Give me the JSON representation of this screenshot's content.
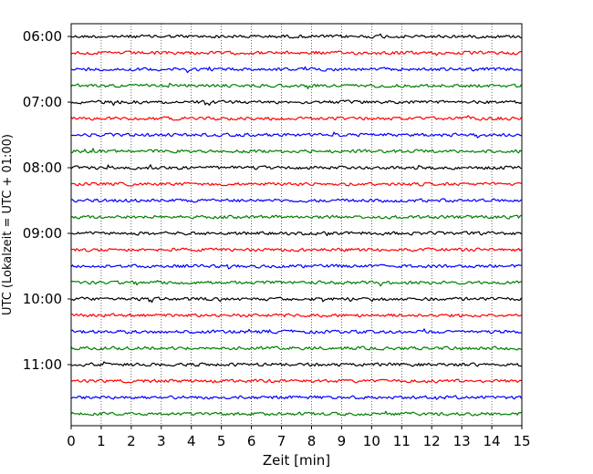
{
  "chart_data": {
    "type": "line",
    "title": "",
    "xlabel": "Zeit  [min]",
    "ylabel": "UTC (Lokalzeit = UTC + 01:00)",
    "xlim": [
      0,
      15
    ],
    "x_ticks": [
      "0",
      "1",
      "2",
      "3",
      "4",
      "5",
      "6",
      "7",
      "8",
      "9",
      "10",
      "11",
      "12",
      "13",
      "14",
      "15"
    ],
    "y_ticks": [
      "06:00",
      "07:00",
      "08:00",
      "09:00",
      "10:00",
      "11:00"
    ],
    "grid": "vertical dotted at each minute",
    "trace_interval_minutes": 15,
    "trace_colors": [
      "#000000",
      "#ff0000",
      "#0000ff",
      "#008000"
    ],
    "traces": [
      {
        "start": "06:00"
      },
      {
        "start": "06:15"
      },
      {
        "start": "06:30"
      },
      {
        "start": "06:45"
      },
      {
        "start": "07:00"
      },
      {
        "start": "07:15"
      },
      {
        "start": "07:30"
      },
      {
        "start": "07:45"
      },
      {
        "start": "08:00"
      },
      {
        "start": "08:15"
      },
      {
        "start": "08:30"
      },
      {
        "start": "08:45"
      },
      {
        "start": "09:00"
      },
      {
        "start": "09:15"
      },
      {
        "start": "09:30"
      },
      {
        "start": "09:45"
      },
      {
        "start": "10:00"
      },
      {
        "start": "10:15"
      },
      {
        "start": "10:30"
      },
      {
        "start": "10:45"
      },
      {
        "start": "11:00"
      },
      {
        "start": "11:15"
      },
      {
        "start": "11:30"
      },
      {
        "start": "11:45"
      }
    ]
  }
}
